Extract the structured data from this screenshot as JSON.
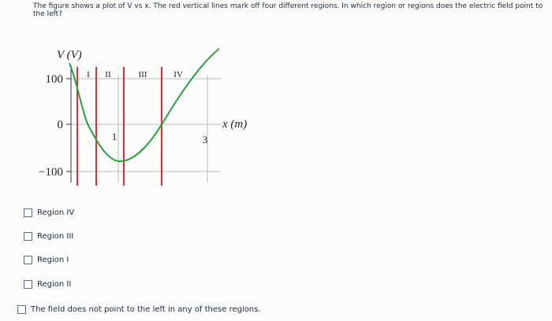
{
  "question": "The figure shows a plot of V vs x. The red vertical lines mark off four different regions. In which region or regions does the electric field point to the left?",
  "figure": {
    "y_label": "V (V)",
    "x_label": "x (m)",
    "y_tick_labels": [
      "100",
      "0",
      "−100"
    ],
    "x_tick_labels": [
      "1",
      "3"
    ],
    "region_labels": [
      "I",
      "II",
      "III",
      "IV"
    ]
  },
  "options": [
    "Region IV",
    "Region III",
    "Region I",
    "Region II",
    "The field does not point to the left in any of these regions."
  ]
}
